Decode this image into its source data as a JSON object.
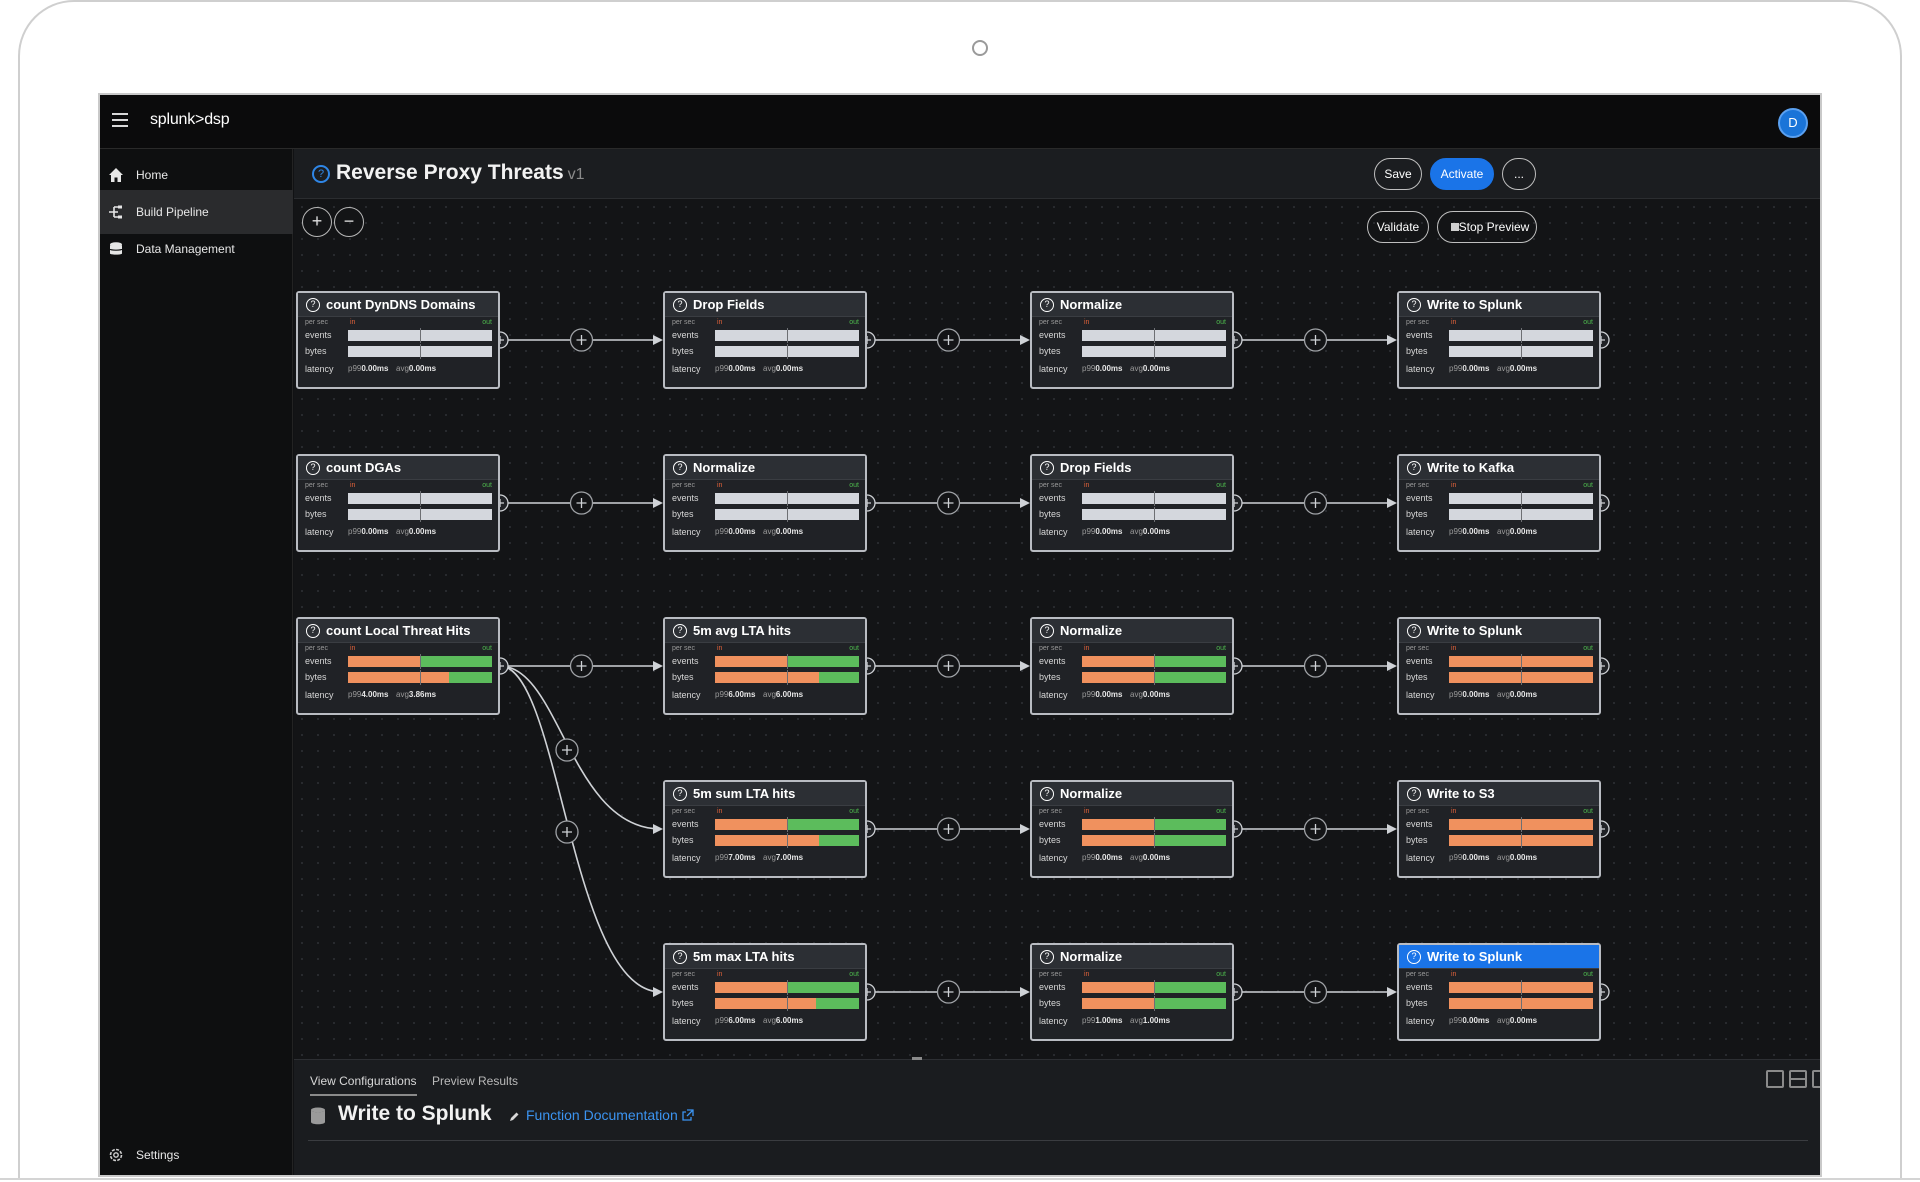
{
  "app": {
    "logo": "splunk>dsp",
    "avatar_initial": "D"
  },
  "sidebar": {
    "items": [
      {
        "label": "Home",
        "icon": "home-icon"
      },
      {
        "label": "Build Pipeline",
        "icon": "pipeline-icon"
      },
      {
        "label": "Data Management",
        "icon": "database-icon"
      }
    ],
    "settings_label": "Settings"
  },
  "header": {
    "title": "Reverse Proxy Threats",
    "version": "v1",
    "save_label": "Save",
    "activate_label": "Activate",
    "more_label": "..."
  },
  "canvas": {
    "zoom_in": "+",
    "zoom_out": "−",
    "validate_label": "Validate",
    "stop_preview_label": "Stop Preview"
  },
  "metric_labels": {
    "per_sec": "per sec",
    "in": "in",
    "out": "out",
    "events": "events",
    "bytes": "bytes",
    "latency": "latency"
  },
  "nodes": [
    {
      "title": "count DynDNS Domains",
      "p99": "0.00ms",
      "avg": "0.00ms",
      "active": false,
      "ev_in": 0,
      "ev_out": 0,
      "by_in": 0,
      "by_out": 0
    },
    {
      "title": "Drop Fields",
      "p99": "0.00ms",
      "avg": "0.00ms",
      "active": false,
      "ev_in": 0,
      "ev_out": 0,
      "by_in": 0,
      "by_out": 0
    },
    {
      "title": "Normalize",
      "p99": "0.00ms",
      "avg": "0.00ms",
      "active": false,
      "ev_in": 0,
      "ev_out": 0,
      "by_in": 0,
      "by_out": 0
    },
    {
      "title": "Write to Splunk",
      "p99": "0.00ms",
      "avg": "0.00ms",
      "active": false,
      "ev_in": 0,
      "ev_out": 0,
      "by_in": 0,
      "by_out": 0
    },
    {
      "title": "count DGAs",
      "p99": "0.00ms",
      "avg": "0.00ms",
      "active": false,
      "ev_in": 0,
      "ev_out": 0,
      "by_in": 0,
      "by_out": 0
    },
    {
      "title": "Normalize",
      "p99": "0.00ms",
      "avg": "0.00ms",
      "active": false,
      "ev_in": 0,
      "ev_out": 0,
      "by_in": 0,
      "by_out": 0
    },
    {
      "title": "Drop Fields",
      "p99": "0.00ms",
      "avg": "0.00ms",
      "active": false,
      "ev_in": 0,
      "ev_out": 0,
      "by_in": 0,
      "by_out": 0
    },
    {
      "title": "Write to Kafka",
      "p99": "0.00ms",
      "avg": "0.00ms",
      "active": false,
      "ev_in": 0,
      "ev_out": 0,
      "by_in": 0,
      "by_out": 0
    },
    {
      "title": "count Local Threat Hits",
      "p99": "4.00ms",
      "avg": "3.86ms",
      "active": true,
      "ev_in": 0.5,
      "ev_out": 0.5,
      "by_in": 0.7,
      "by_out": 0.3
    },
    {
      "title": "5m avg LTA hits",
      "p99": "6.00ms",
      "avg": "6.00ms",
      "active": true,
      "ev_in": 0.5,
      "ev_out": 0.5,
      "by_in": 0.72,
      "by_out": 0.28
    },
    {
      "title": "Normalize",
      "p99": "0.00ms",
      "avg": "0.00ms",
      "active": true,
      "ev_in": 0.5,
      "ev_out": 0.5,
      "by_in": 0.5,
      "by_out": 0.5
    },
    {
      "title": "Write to Splunk",
      "p99": "0.00ms",
      "avg": "0.00ms",
      "active": true,
      "ev_in": 1,
      "ev_out": 0,
      "by_in": 1,
      "by_out": 0
    },
    {
      "title": "5m sum LTA hits",
      "p99": "7.00ms",
      "avg": "7.00ms",
      "active": true,
      "ev_in": 0.5,
      "ev_out": 0.5,
      "by_in": 0.72,
      "by_out": 0.28
    },
    {
      "title": "Normalize",
      "p99": "0.00ms",
      "avg": "0.00ms",
      "active": true,
      "ev_in": 0.5,
      "ev_out": 0.5,
      "by_in": 0.5,
      "by_out": 0.5
    },
    {
      "title": "Write to S3",
      "p99": "0.00ms",
      "avg": "0.00ms",
      "active": true,
      "ev_in": 1,
      "ev_out": 0,
      "by_in": 1,
      "by_out": 0
    },
    {
      "title": "5m max LTA hits",
      "p99": "6.00ms",
      "avg": "6.00ms",
      "active": true,
      "ev_in": 0.5,
      "ev_out": 0.5,
      "by_in": 0.7,
      "by_out": 0.3
    },
    {
      "title": "Normalize",
      "p99": "1.00ms",
      "avg": "1.00ms",
      "active": true,
      "ev_in": 0.5,
      "ev_out": 0.5,
      "by_in": 0.5,
      "by_out": 0.5
    },
    {
      "title": "Write to Splunk",
      "p99": "0.00ms",
      "avg": "0.00ms",
      "active": true,
      "selected": true,
      "ev_in": 1,
      "ev_out": 0,
      "by_in": 1,
      "by_out": 0
    }
  ],
  "bottom_panel": {
    "tabs": [
      "View Configurations",
      "Preview Results"
    ],
    "function_title": "Write to Splunk",
    "doc_link": "Function Documentation"
  }
}
